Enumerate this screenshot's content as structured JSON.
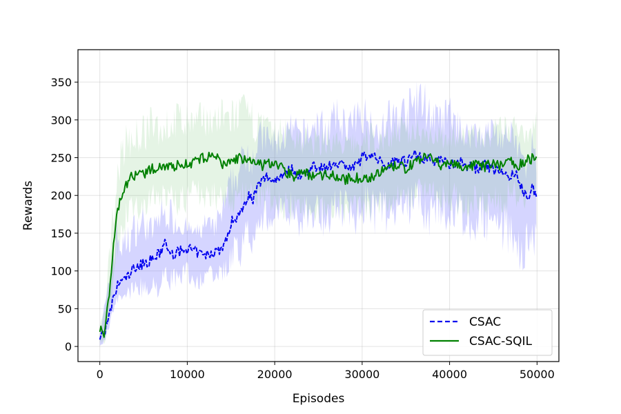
{
  "chart_data": {
    "type": "line",
    "title": "",
    "xlabel": "Episodes",
    "ylabel": "Rewards",
    "xlim": [
      -2500,
      52500
    ],
    "ylim": [
      -20,
      393
    ],
    "xticks": [
      0,
      10000,
      20000,
      30000,
      40000,
      50000
    ],
    "xtick_labels": [
      "0",
      "10000",
      "20000",
      "30000",
      "40000",
      "50000"
    ],
    "yticks": [
      0,
      50,
      100,
      150,
      200,
      250,
      300,
      350
    ],
    "ytick_labels": [
      "0",
      "50",
      "100",
      "150",
      "200",
      "250",
      "300",
      "350"
    ],
    "grid": true,
    "legend_position": "bottom-right",
    "series": [
      {
        "name": "CSAC",
        "color": "#0000ee",
        "linestyle": "dashed",
        "x": [
          0,
          500,
          1000,
          1500,
          2000,
          2500,
          3000,
          4000,
          5000,
          6000,
          7000,
          7500,
          8000,
          9000,
          10000,
          11000,
          12000,
          13000,
          14000,
          14500,
          15000,
          15500,
          16000,
          16500,
          17000,
          17500,
          18000,
          19000,
          20000,
          21000,
          22000,
          23000,
          24000,
          25000,
          26000,
          27000,
          28000,
          29000,
          30000,
          31000,
          32000,
          33000,
          34000,
          35000,
          36000,
          37000,
          38000,
          39000,
          40000,
          41000,
          42000,
          43000,
          44000,
          45000,
          46000,
          47000,
          47500,
          48000,
          48500,
          49000,
          49500,
          50000
        ],
        "values": [
          12,
          20,
          35,
          60,
          80,
          88,
          90,
          105,
          110,
          115,
          125,
          140,
          120,
          125,
          130,
          125,
          120,
          125,
          130,
          140,
          165,
          170,
          175,
          190,
          200,
          195,
          210,
          225,
          220,
          230,
          235,
          225,
          235,
          240,
          235,
          245,
          240,
          235,
          250,
          255,
          245,
          240,
          250,
          245,
          255,
          250,
          245,
          250,
          240,
          245,
          240,
          235,
          240,
          235,
          230,
          225,
          230,
          215,
          205,
          200,
          210,
          195
        ],
        "band_upper": [
          25,
          60,
          90,
          150,
          180,
          150,
          160,
          180,
          190,
          170,
          200,
          190,
          200,
          180,
          170,
          160,
          180,
          170,
          200,
          220,
          240,
          250,
          260,
          280,
          290,
          280,
          300,
          300,
          290,
          300,
          310,
          300,
          310,
          320,
          310,
          330,
          320,
          320,
          340,
          320,
          300,
          330,
          330,
          340,
          350,
          360,
          330,
          320,
          340,
          310,
          300,
          310,
          300,
          310,
          300,
          300,
          290,
          280,
          260,
          250,
          300,
          240
        ],
        "band_lower": [
          0,
          0,
          20,
          40,
          50,
          60,
          55,
          70,
          60,
          70,
          60,
          80,
          70,
          80,
          80,
          70,
          80,
          75,
          80,
          85,
          100,
          110,
          100,
          120,
          130,
          120,
          150,
          140,
          150,
          150,
          160,
          140,
          150,
          150,
          140,
          160,
          150,
          140,
          160,
          150,
          140,
          150,
          160,
          150,
          160,
          150,
          140,
          150,
          140,
          150,
          140,
          130,
          140,
          130,
          120,
          120,
          110,
          100,
          90,
          100,
          110,
          110
        ]
      },
      {
        "name": "CSAC-SQIL",
        "color": "#008000",
        "linestyle": "solid",
        "x": [
          0,
          500,
          1000,
          1500,
          2000,
          2500,
          3000,
          3500,
          4000,
          5000,
          6000,
          7000,
          8000,
          9000,
          10000,
          11000,
          12000,
          13000,
          14000,
          15000,
          16000,
          17000,
          18000,
          19000,
          20000,
          21000,
          22000,
          23000,
          24000,
          25000,
          26000,
          27000,
          28000,
          29000,
          30000,
          31000,
          32000,
          33000,
          34000,
          35000,
          36000,
          37000,
          38000,
          39000,
          40000,
          41000,
          42000,
          43000,
          44000,
          45000,
          46000,
          47000,
          48000,
          49000,
          50000
        ],
        "values": [
          25,
          15,
          60,
          130,
          175,
          200,
          215,
          225,
          225,
          228,
          235,
          240,
          238,
          240,
          242,
          245,
          250,
          255,
          240,
          245,
          250,
          245,
          240,
          240,
          245,
          235,
          225,
          230,
          228,
          225,
          230,
          225,
          220,
          225,
          220,
          225,
          230,
          235,
          240,
          235,
          245,
          250,
          248,
          240,
          245,
          240,
          235,
          240,
          238,
          242,
          240,
          245,
          240,
          248,
          250
        ],
        "band_upper": [
          30,
          50,
          120,
          200,
          250,
          280,
          300,
          290,
          300,
          310,
          320,
          310,
          320,
          330,
          320,
          320,
          330,
          320,
          330,
          330,
          340,
          330,
          320,
          310,
          300,
          310,
          300,
          300,
          290,
          290,
          300,
          290,
          280,
          290,
          290,
          300,
          290,
          300,
          310,
          300,
          310,
          300,
          300,
          290,
          300,
          290,
          300,
          300,
          290,
          300,
          310,
          300,
          320,
          300,
          320
        ],
        "band_lower": [
          0,
          0,
          20,
          60,
          100,
          130,
          150,
          160,
          160,
          170,
          180,
          170,
          180,
          170,
          175,
          180,
          180,
          175,
          180,
          170,
          180,
          180,
          170,
          175,
          170,
          165,
          160,
          170,
          165,
          160,
          170,
          165,
          160,
          165,
          160,
          165,
          170,
          175,
          180,
          170,
          180,
          185,
          175,
          170,
          175,
          170,
          165,
          175,
          170,
          175,
          170,
          180,
          175,
          180,
          185
        ]
      }
    ]
  }
}
